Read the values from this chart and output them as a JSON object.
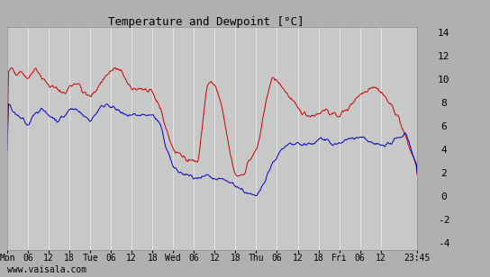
{
  "title": "Temperature and Dewpoint [°C]",
  "ylabel_right_ticks": [
    -4,
    -2,
    0,
    2,
    4,
    6,
    8,
    10,
    12,
    14
  ],
  "ylim": [
    -4.5,
    14.5
  ],
  "xtick_labels": [
    "Mon",
    "06",
    "12",
    "18",
    "Tue",
    "06",
    "12",
    "18",
    "Wed",
    "06",
    "12",
    "18",
    "Thu",
    "06",
    "12",
    "18",
    "Fri",
    "06",
    "12",
    "23:45"
  ],
  "tick_positions": [
    0.0,
    0.25,
    0.5,
    0.75,
    1.0,
    1.25,
    1.5,
    1.75,
    2.0,
    2.25,
    2.5,
    2.75,
    3.0,
    3.25,
    3.5,
    3.75,
    4.0,
    4.25,
    4.5,
    4.9375
  ],
  "xlim": [
    0.0,
    4.9375
  ],
  "background_color": "#b0b0b0",
  "plot_bg_color": "#c8c8c8",
  "grid_color": "#e8e8e8",
  "temp_color": "#cc0000",
  "dew_color": "#0000cc",
  "watermark": "www.vaisala.com",
  "total_points": 600
}
